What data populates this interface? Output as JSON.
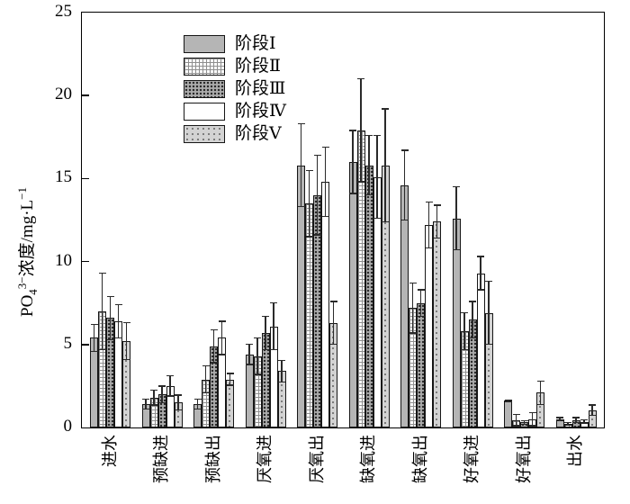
{
  "chart_data": {
    "type": "bar",
    "title": "",
    "xlabel": "",
    "ylabel_parts": {
      "prefix": "PO",
      "sub": "4",
      "sup1": "3−",
      "mid": "浓度/mg·L",
      "sup2": "−1"
    },
    "ylabel_text": "PO4(3-)浓度/mg·L(-1)",
    "ylim": [
      0,
      25
    ],
    "yticks": [
      0,
      5,
      10,
      15,
      20,
      25
    ],
    "grid": false,
    "legend_position": "upper-left",
    "categories": [
      "进水",
      "预缺进",
      "预缺出",
      "厌氧进",
      "厌氧出",
      "缺氧进",
      "缺氧出",
      "好氧进",
      "好氧出",
      "出水"
    ],
    "series": [
      {
        "name": "阶段Ⅰ",
        "pattern": "solid-gray",
        "values": [
          5.4,
          1.4,
          1.4,
          4.4,
          15.8,
          16.0,
          14.6,
          12.6,
          1.6,
          0.5
        ],
        "errors": [
          0.8,
          0.3,
          0.3,
          0.6,
          2.5,
          1.9,
          2.1,
          1.9,
          0.05,
          0.1
        ]
      },
      {
        "name": "阶段Ⅱ",
        "pattern": "white-grid-hatch",
        "values": [
          7.0,
          1.8,
          2.9,
          4.3,
          13.5,
          17.9,
          7.2,
          5.8,
          0.45,
          0.2
        ],
        "errors": [
          2.3,
          0.45,
          0.8,
          1.1,
          2.0,
          3.1,
          1.5,
          1.1,
          0.35,
          0.08
        ]
      },
      {
        "name": "阶段Ⅲ",
        "pattern": "gray-dense-dots",
        "values": [
          6.6,
          2.0,
          4.9,
          5.7,
          14.0,
          15.8,
          7.5,
          6.5,
          0.3,
          0.45
        ],
        "errors": [
          1.3,
          0.5,
          1.0,
          1.0,
          2.4,
          1.8,
          0.8,
          1.1,
          0.1,
          0.15
        ]
      },
      {
        "name": "阶段Ⅳ",
        "pattern": "solid-white",
        "values": [
          6.4,
          2.5,
          5.4,
          6.1,
          14.8,
          15.1,
          12.2,
          9.3,
          0.5,
          0.35
        ],
        "errors": [
          1.0,
          0.6,
          1.0,
          1.4,
          2.1,
          2.5,
          1.4,
          1.0,
          0.4,
          0.1
        ]
      },
      {
        "name": "阶段Ⅴ",
        "pattern": "light-gray-sparse-dots",
        "values": [
          5.2,
          1.5,
          2.9,
          3.4,
          6.3,
          15.8,
          12.4,
          6.9,
          2.1,
          1.05
        ],
        "errors": [
          1.1,
          0.45,
          0.35,
          0.65,
          1.3,
          3.4,
          1.0,
          1.9,
          0.7,
          0.3
        ]
      }
    ],
    "colors": {
      "bar_outline": "#161616",
      "solid_gray": "#b5b5b5",
      "dense_dot_base": "#ababab",
      "sparse_dot_base": "#d3d3d3",
      "axis": "#000000",
      "error_bar": "#2a2a2a"
    }
  }
}
